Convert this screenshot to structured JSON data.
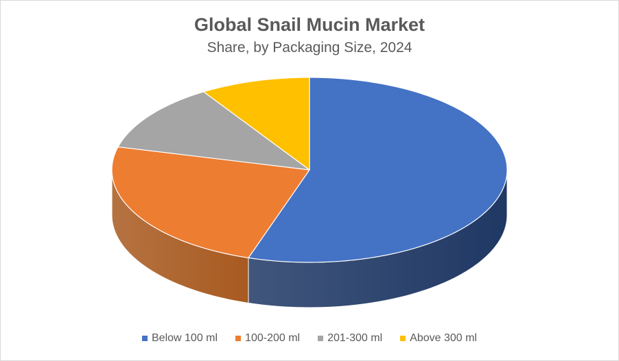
{
  "chart_data": {
    "type": "pie",
    "title": "Global Snail Mucin Market",
    "subtitle": "Share, by Packaging Size, 2024",
    "categories": [
      "Below 100 ml",
      "100-200 ml",
      "201-300 ml",
      "Above 300 ml"
    ],
    "values": [
      55,
      24,
      12,
      9
    ],
    "unit": "%",
    "colors": [
      "#4472C4",
      "#ED7D31",
      "#A5A5A5",
      "#FFC000"
    ],
    "side_colors": [
      "#1F3864",
      "#A85A20",
      "#7F7F7F",
      "#BF9000"
    ],
    "style": "3d",
    "legend_position": "bottom"
  }
}
